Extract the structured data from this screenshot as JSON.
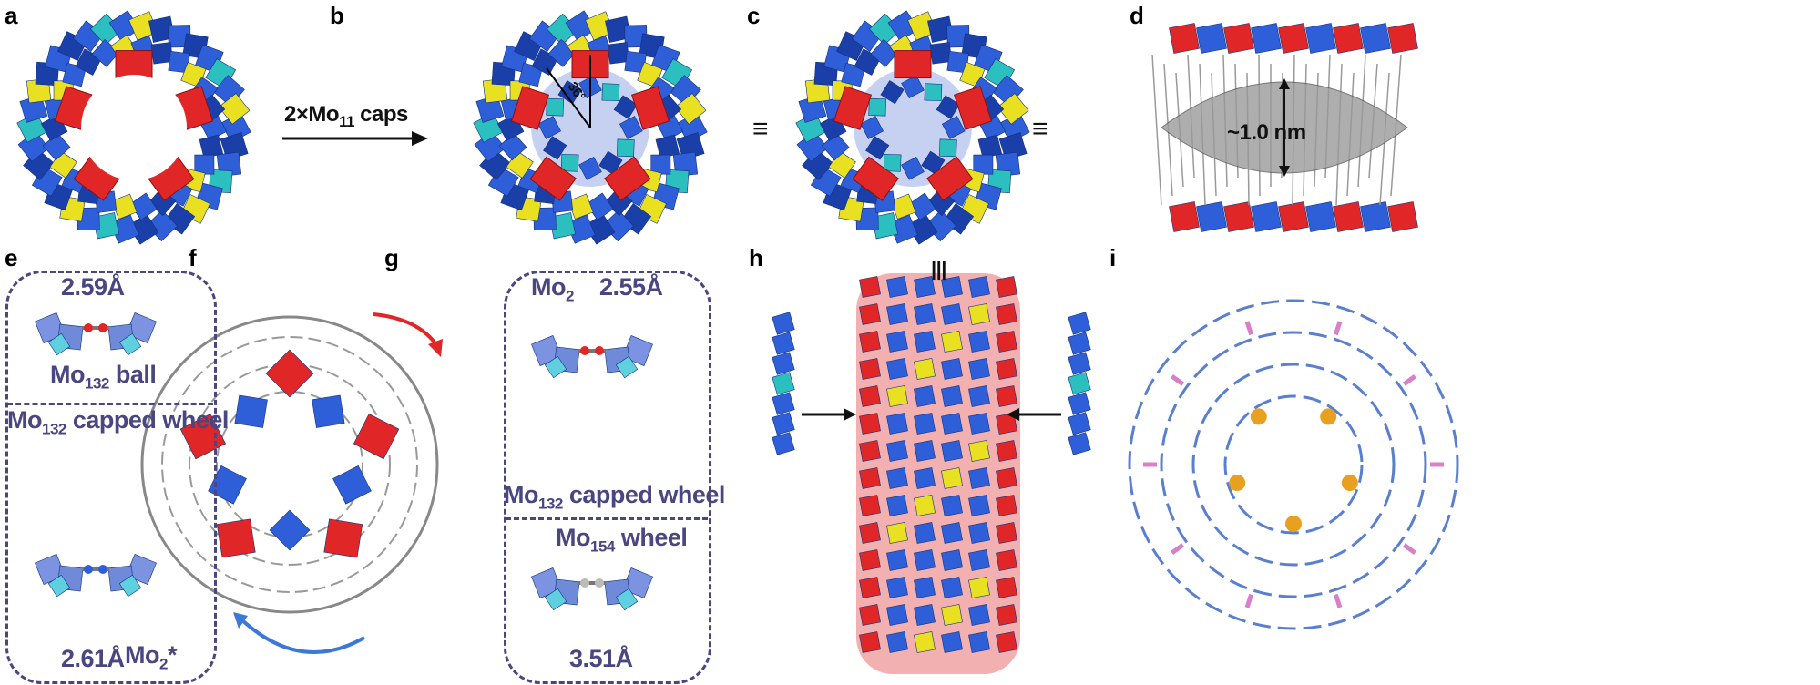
{
  "panels": {
    "a": "a",
    "b": "b",
    "c": "c",
    "d": "d",
    "e": "e",
    "f": "f",
    "g": "g",
    "h": "h",
    "i": "i"
  },
  "arrow_label": {
    "prefix": "2×Mo",
    "sub": "11",
    "suffix": " caps"
  },
  "angle_label": "36°",
  "equiv_symbol": "≡",
  "equiv_vertical": "|||",
  "size_label": "~1.0 nm",
  "panel_e": {
    "top_distance": "2.59Å",
    "top_name": {
      "prefix": "Mo",
      "sub": "132",
      "suffix": " ball"
    },
    "bottom_name": {
      "prefix": "Mo",
      "sub": "132",
      "suffix": " capped wheel"
    },
    "bottom_distance": "2.61Å",
    "bottom_tag": {
      "prefix": "Mo",
      "sub": "2",
      "suffix": "*"
    }
  },
  "panel_g": {
    "top_tag": {
      "prefix": "Mo",
      "sub": "2"
    },
    "top_distance": "2.55Å",
    "top_name": {
      "prefix": "Mo",
      "sub": "132",
      "suffix": " capped wheel"
    },
    "bottom_name": {
      "prefix": "Mo",
      "sub": "154",
      "suffix": " wheel"
    },
    "bottom_distance": "3.51Å"
  },
  "colors": {
    "blue": "#2f5fd8",
    "dark_blue": "#1b3fa8",
    "red": "#e02626",
    "yellow": "#e8e020",
    "cyan": "#2bbfc0",
    "text_purple": "#4a4680",
    "gray": "#8a8a8a",
    "orange": "#e8a020",
    "pink": "#d880c8"
  }
}
